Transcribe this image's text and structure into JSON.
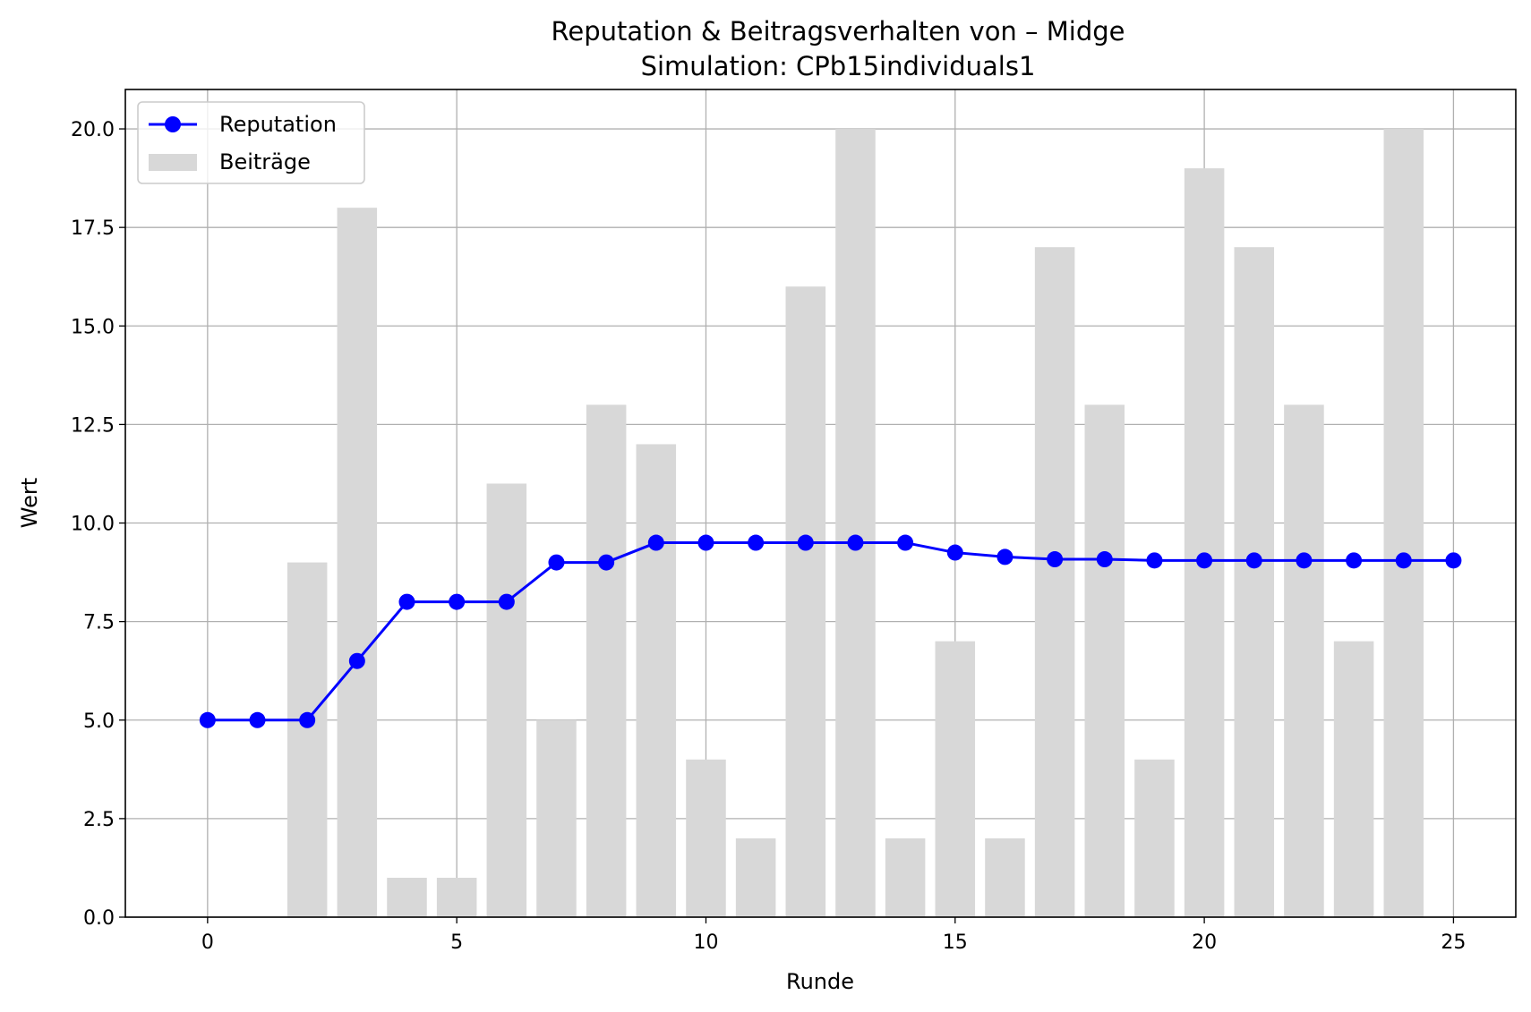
{
  "chart_data": {
    "type": "bar+line",
    "title": "Reputation & Beitragsverhalten von – Midge",
    "subtitle": "Simulation: CPb15individuals1",
    "xlabel": "Runde",
    "ylabel": "Wert",
    "xlim": [
      -1.65,
      26.25
    ],
    "ylim": [
      0,
      21
    ],
    "x_ticks": [
      0,
      5,
      10,
      15,
      20,
      25
    ],
    "y_ticks": [
      0.0,
      2.5,
      5.0,
      7.5,
      10.0,
      12.5,
      15.0,
      17.5,
      20.0
    ],
    "grid": true,
    "legend_position": "upper-left",
    "x": [
      0,
      1,
      2,
      3,
      4,
      5,
      6,
      7,
      8,
      9,
      10,
      11,
      12,
      13,
      14,
      15,
      16,
      17,
      18,
      19,
      20,
      21,
      22,
      23,
      24,
      25
    ],
    "series": [
      {
        "name": "Reputation",
        "kind": "line",
        "color": "#0000ff",
        "marker": "circle",
        "values": [
          5,
          5,
          5,
          6.5,
          8,
          8,
          8,
          9,
          9,
          9.5,
          9.5,
          9.5,
          9.5,
          9.5,
          9.5,
          9.25,
          9.14,
          9.08,
          9.08,
          9.05,
          9.05,
          9.05,
          9.05,
          9.05,
          9.05,
          9.05
        ]
      },
      {
        "name": "Beiträge",
        "kind": "bar",
        "color": "#d8d8d8",
        "values": [
          null,
          null,
          9,
          18,
          1,
          1,
          11,
          5,
          13,
          12,
          4,
          2,
          16,
          20,
          2,
          7,
          2,
          17,
          13,
          4,
          19,
          17,
          13,
          7,
          20,
          null
        ]
      }
    ]
  }
}
